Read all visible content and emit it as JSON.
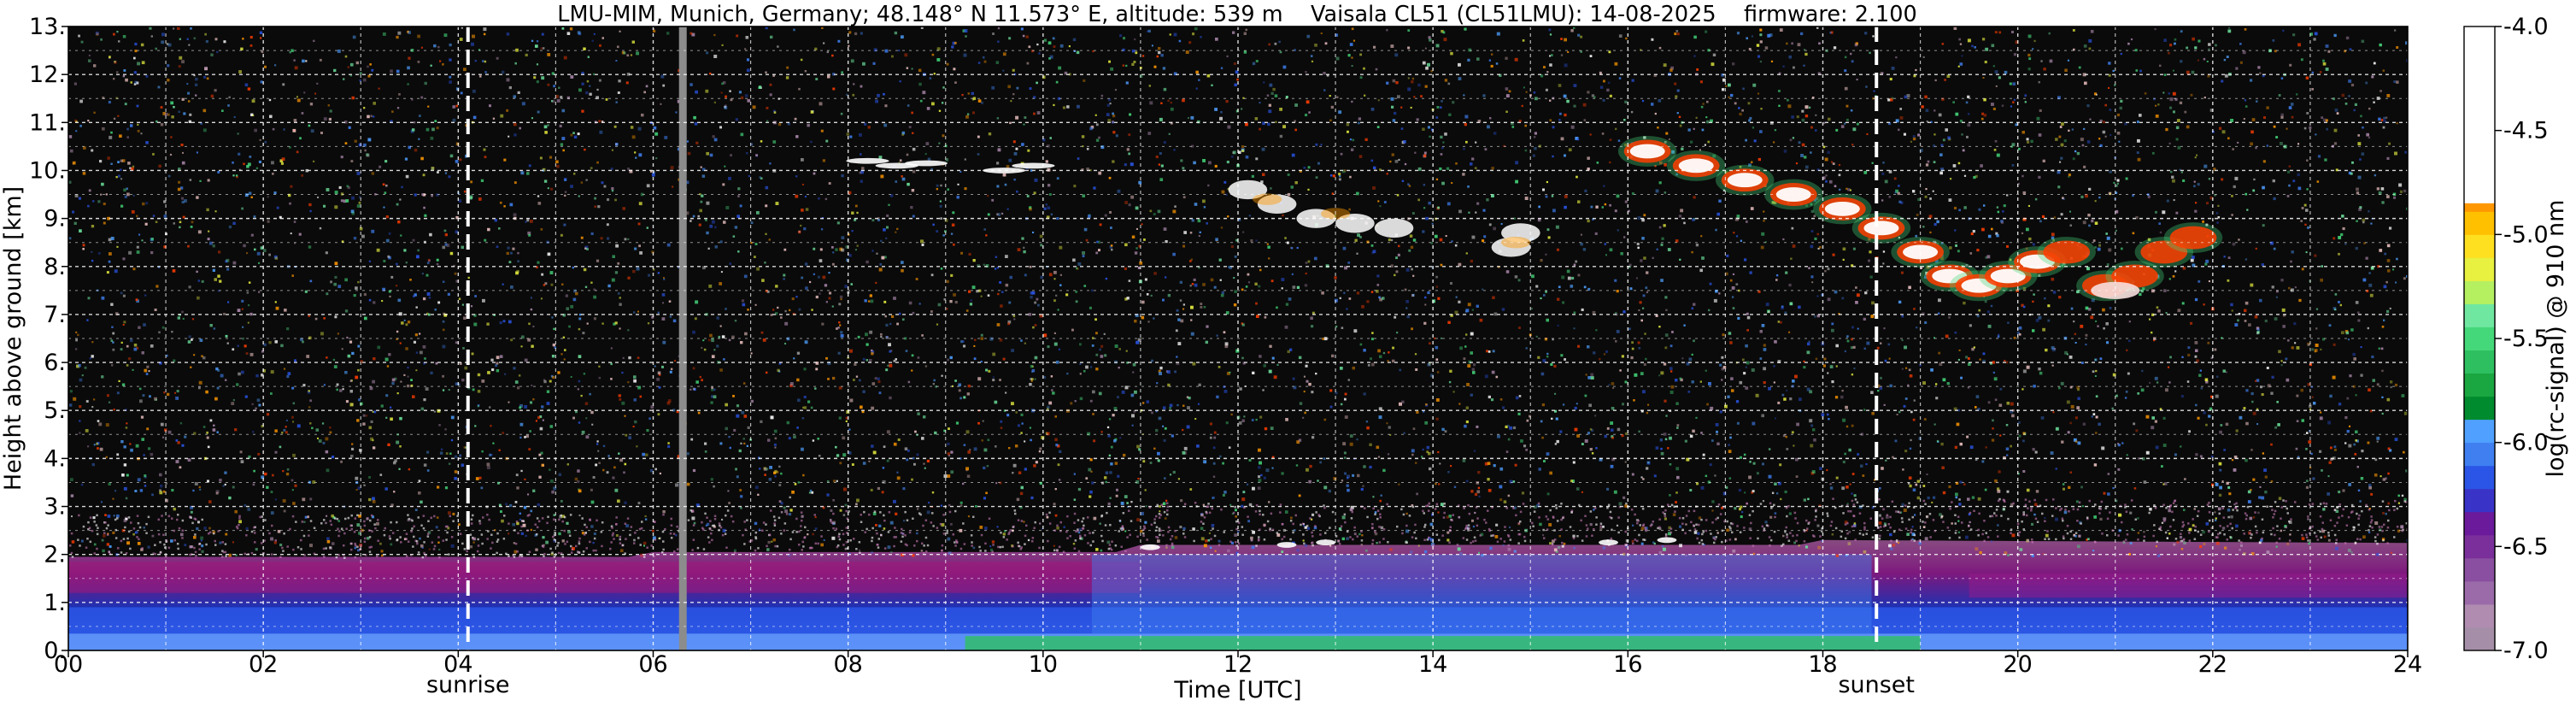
{
  "chart_data": {
    "type": "heatmap",
    "title": "LMU-MIM, Munich, Germany; 48.148° N 11.573° E, altitude: 539 m    Vaisala CL51 (CL51LMU): 14-08-2025    firmware: 2.100",
    "xlabel": "Time [UTC]",
    "ylabel": "Height above ground [km]",
    "xlim": [
      0,
      24
    ],
    "ylim": [
      0,
      13
    ],
    "x_ticks": [
      "00",
      "02",
      "04",
      "06",
      "08",
      "10",
      "12",
      "14",
      "16",
      "18",
      "20",
      "22",
      "24"
    ],
    "x_tick_values": [
      0,
      2,
      4,
      6,
      8,
      10,
      12,
      14,
      16,
      18,
      20,
      22,
      24
    ],
    "y_ticks": [
      "0.",
      "1.",
      "2.",
      "3.",
      "4.",
      "5.",
      "6.",
      "7.",
      "8.",
      "9.",
      "10.",
      "11.",
      "12.",
      "13."
    ],
    "y_tick_values": [
      0,
      1,
      2,
      3,
      4,
      5,
      6,
      7,
      8,
      9,
      10,
      11,
      12,
      13
    ],
    "grid": true,
    "background": "#0a0a0a",
    "sun_events": [
      {
        "label": "sunrise",
        "time": 4.1
      },
      {
        "label": "sunset",
        "time": 18.55
      }
    ],
    "data_gap": {
      "time": 6.3,
      "color": "#8c8c8c"
    },
    "colorbar": {
      "label": "log(rc-signal) @ 910 nm",
      "range": [
        -7.0,
        -4.0
      ],
      "tick_labels": [
        "-4.0",
        "-4.5",
        "-5.0",
        "-5.5",
        "-6.0",
        "-6.5",
        "-7.0"
      ],
      "tick_values": [
        -4.0,
        -4.5,
        -5.0,
        -5.5,
        -6.0,
        -6.5,
        -7.0
      ],
      "colors": [
        "#a58fa8",
        "#b08cb0",
        "#9b6aa8",
        "#8a4fa0",
        "#7b2f9a",
        "#6a1a9a",
        "#3a33c8",
        "#2a55e6",
        "#3f7ff0",
        "#4fa0ff",
        "#008c2e",
        "#1aa640",
        "#2ec060",
        "#45d87a",
        "#6fe7a0",
        "#b5f060",
        "#e8f040",
        "#ffe020",
        "#ffc000",
        "#ff9800",
        "#ff6a00",
        "#ff3d00",
        "#ff1a00",
        "#e80000",
        "#f0c4c4",
        "#f7dede",
        "#ffffff"
      ]
    }
  }
}
